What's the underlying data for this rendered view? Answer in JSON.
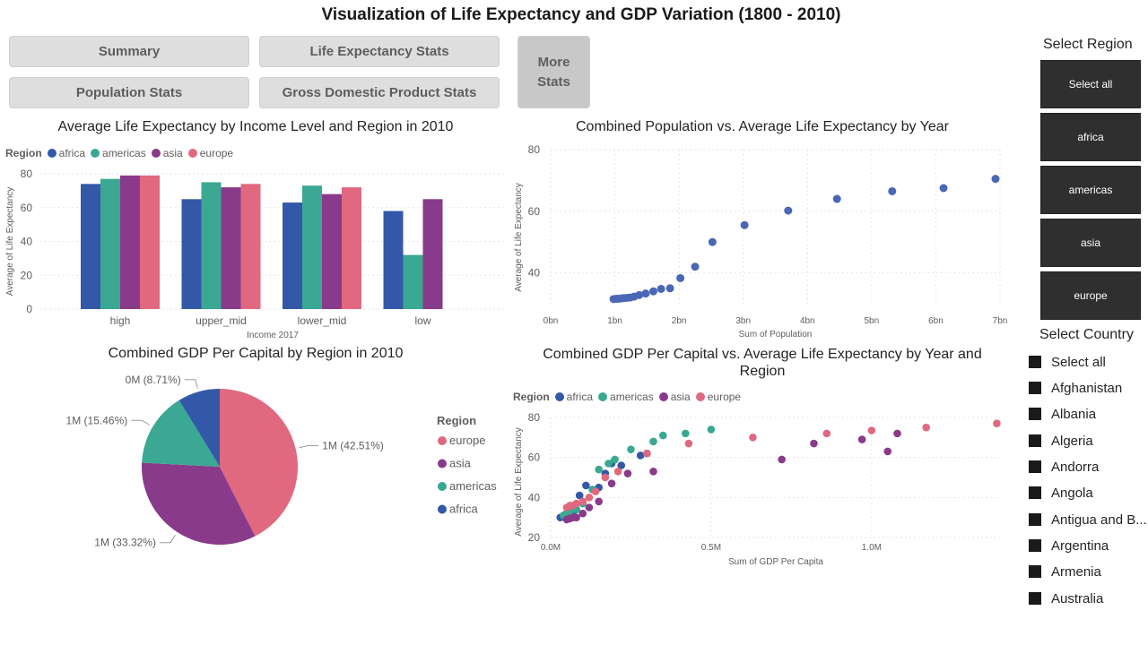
{
  "title": "Visualization of Life Expectancy and GDP Variation (1800 - 2010)",
  "colors": {
    "africa": "#3458a8",
    "americas": "#3aa892",
    "asia": "#8a3a8a",
    "europe": "#e0697f",
    "scatter_single": "#4a67b5",
    "tile_bg": "#2f2f2f",
    "button_bg": "#dedede"
  },
  "nav": {
    "summary": "Summary",
    "life": "Life Expectancy Stats",
    "population": "Population Stats",
    "gdp": "Gross Domestic Product Stats",
    "more": "More\nStats"
  },
  "legend_title": "Region",
  "regions": [
    "africa",
    "americas",
    "asia",
    "europe"
  ],
  "region_slicer": {
    "title": "Select Region",
    "items": [
      "Select all",
      "africa",
      "americas",
      "asia",
      "europe"
    ]
  },
  "country_slicer": {
    "title": "Select Country",
    "items": [
      "Select all",
      "Afghanistan",
      "Albania",
      "Algeria",
      "Andorra",
      "Angola",
      "Antigua and B...",
      "Argentina",
      "Armenia",
      "Australia"
    ]
  },
  "chart_data": [
    {
      "type": "bar",
      "title": "Average Life Expectancy by Income Level and Region in 2010",
      "xlabel": "Income 2017",
      "ylabel": "Average of Life Expectancy",
      "categories": [
        "high",
        "upper_mid",
        "lower_mid",
        "low"
      ],
      "ylim": [
        0,
        80
      ],
      "yticks": [
        0,
        20,
        40,
        60,
        80
      ],
      "legend": "top-left",
      "series": [
        {
          "name": "africa",
          "values": [
            74,
            65,
            63,
            58
          ]
        },
        {
          "name": "americas",
          "values": [
            77,
            75,
            73,
            32
          ]
        },
        {
          "name": "asia",
          "values": [
            79,
            72,
            68,
            65
          ]
        },
        {
          "name": "europe",
          "values": [
            79,
            74,
            72,
            null
          ]
        }
      ]
    },
    {
      "type": "scatter",
      "title": "Combined Population vs. Average Life Expectancy by Year",
      "xlabel": "Sum of Population",
      "ylabel": "Average of Life Expectancy",
      "xticks": [
        "0bn",
        "1bn",
        "2bn",
        "3bn",
        "4bn",
        "5bn",
        "6bn",
        "7bn"
      ],
      "xlim": [
        0,
        7
      ],
      "ylim": [
        30,
        80
      ],
      "yticks": [
        40,
        60,
        80
      ],
      "points": [
        [
          0.98,
          31.5
        ],
        [
          1.02,
          31.6
        ],
        [
          1.06,
          31.6
        ],
        [
          1.1,
          31.7
        ],
        [
          1.14,
          31.8
        ],
        [
          1.19,
          31.9
        ],
        [
          1.24,
          32.0
        ],
        [
          1.3,
          32.3
        ],
        [
          1.38,
          32.8
        ],
        [
          1.48,
          33.3
        ],
        [
          1.6,
          34.0
        ],
        [
          1.72,
          34.8
        ],
        [
          1.86,
          35.0
        ],
        [
          2.02,
          38.3
        ],
        [
          2.25,
          42.0
        ],
        [
          2.52,
          50.0
        ],
        [
          3.02,
          55.5
        ],
        [
          3.7,
          60.2
        ],
        [
          4.46,
          64.0
        ],
        [
          5.32,
          66.5
        ],
        [
          6.12,
          67.5
        ],
        [
          6.93,
          70.5
        ]
      ]
    },
    {
      "type": "pie",
      "title": "Combined GDP Per Capital by Region in 2010",
      "legend": "right",
      "slices": [
        {
          "name": "europe",
          "label": "1M (42.51%)",
          "percent": 42.51
        },
        {
          "name": "asia",
          "label": "1M (33.32%)",
          "percent": 33.32
        },
        {
          "name": "americas",
          "label": "1M (15.46%)",
          "percent": 15.46
        },
        {
          "name": "africa",
          "label": "0M (8.71%)",
          "percent": 8.71
        }
      ]
    },
    {
      "type": "scatter",
      "title": "Combined GDP Per Capital vs. Average Life Expectancy by Year and Region",
      "xlabel": "Sum of GDP Per Capita",
      "ylabel": "Average of Life Expectancy",
      "xticks": [
        "0.0M",
        "0.5M",
        "1.0M"
      ],
      "xtick_values": [
        0,
        0.5,
        1.0
      ],
      "xlim": [
        0,
        1.4
      ],
      "ylim": [
        20,
        80
      ],
      "yticks": [
        20,
        40,
        60,
        80
      ],
      "legend": "top-left",
      "series": [
        {
          "name": "africa",
          "points": [
            [
              0.03,
              30
            ],
            [
              0.04,
              31
            ],
            [
              0.05,
              32
            ],
            [
              0.06,
              32.5
            ],
            [
              0.07,
              33
            ],
            [
              0.08,
              34
            ],
            [
              0.09,
              41
            ],
            [
              0.11,
              46
            ],
            [
              0.15,
              45
            ],
            [
              0.17,
              52
            ],
            [
              0.19,
              57
            ],
            [
              0.22,
              56
            ],
            [
              0.28,
              61
            ],
            [
              0.3,
              62
            ]
          ]
        },
        {
          "name": "americas",
          "points": [
            [
              0.04,
              31
            ],
            [
              0.05,
              32
            ],
            [
              0.06,
              33
            ],
            [
              0.08,
              34
            ],
            [
              0.1,
              37
            ],
            [
              0.13,
              44
            ],
            [
              0.15,
              54
            ],
            [
              0.18,
              57
            ],
            [
              0.2,
              59
            ],
            [
              0.25,
              64
            ],
            [
              0.32,
              68
            ],
            [
              0.35,
              71
            ],
            [
              0.42,
              72
            ],
            [
              0.5,
              74
            ]
          ]
        },
        {
          "name": "asia",
          "points": [
            [
              0.05,
              29
            ],
            [
              0.06,
              29.5
            ],
            [
              0.07,
              30
            ],
            [
              0.08,
              30
            ],
            [
              0.1,
              32
            ],
            [
              0.12,
              35
            ],
            [
              0.15,
              38
            ],
            [
              0.19,
              47
            ],
            [
              0.24,
              52
            ],
            [
              0.32,
              53
            ],
            [
              0.72,
              59
            ],
            [
              0.82,
              67
            ],
            [
              0.97,
              69
            ],
            [
              1.05,
              63
            ],
            [
              1.08,
              72
            ]
          ]
        },
        {
          "name": "europe",
          "points": [
            [
              0.05,
              35
            ],
            [
              0.06,
              36
            ],
            [
              0.07,
              36
            ],
            [
              0.08,
              37
            ],
            [
              0.1,
              38
            ],
            [
              0.12,
              40
            ],
            [
              0.14,
              43
            ],
            [
              0.17,
              50
            ],
            [
              0.21,
              53
            ],
            [
              0.3,
              62
            ],
            [
              0.43,
              67
            ],
            [
              0.63,
              70
            ],
            [
              0.86,
              72
            ],
            [
              1.0,
              73.5
            ],
            [
              1.17,
              75
            ],
            [
              1.39,
              77
            ]
          ]
        }
      ]
    }
  ]
}
